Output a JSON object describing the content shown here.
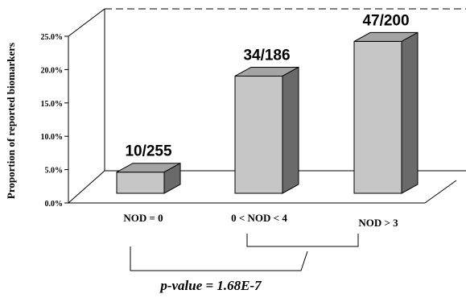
{
  "chart_data": {
    "type": "bar",
    "categories": [
      "NOD = 0",
      "0 < NOD < 4",
      "NOD >  3"
    ],
    "values": [
      3.9,
      18.3,
      23.5
    ],
    "data_labels": [
      "10/255",
      "34/186",
      "47/200"
    ],
    "ylabel": "Proportion of reported biomarkers",
    "ylim": [
      0,
      25
    ],
    "yticks": [
      "0.0%",
      "5.0%",
      "10.0%",
      "15.0%",
      "20.0%",
      "25.0%"
    ],
    "ytick_values": [
      0,
      5,
      10,
      15,
      20,
      25
    ],
    "annotation": "p-value = 1.68E-7",
    "legend": "none",
    "colors": {
      "front": "#c6c6c6",
      "top": "#a4a4a4",
      "side": "#6a6a6a"
    }
  }
}
